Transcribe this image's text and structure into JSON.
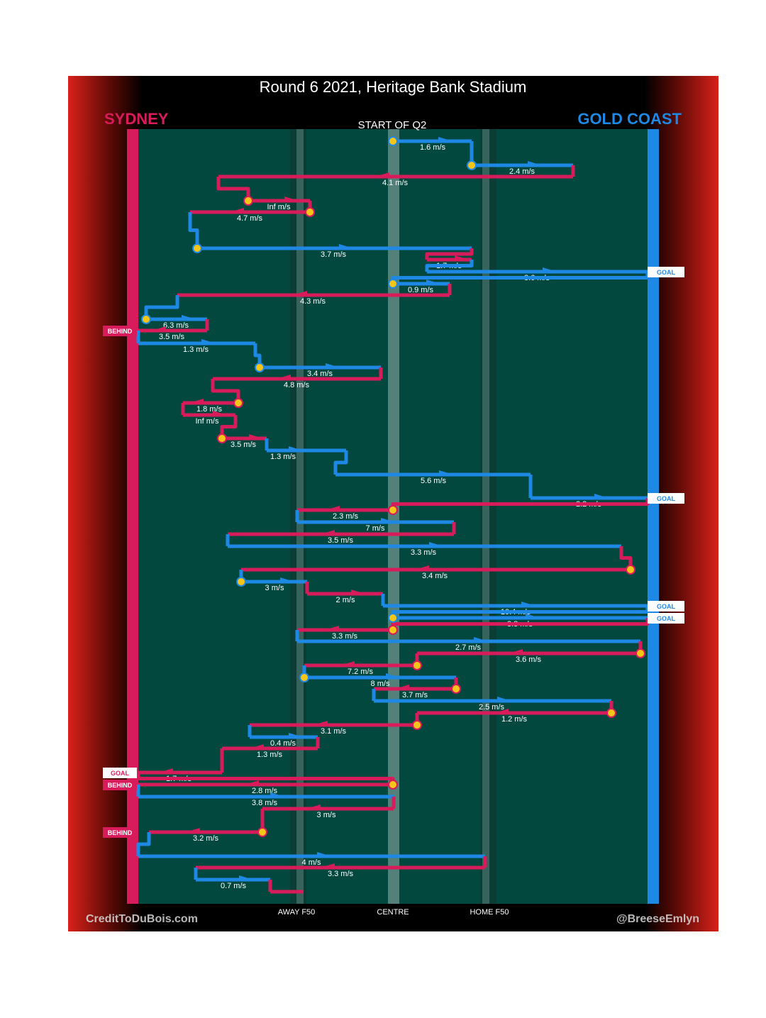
{
  "header": {
    "title": "Round 6 2021, Heritage Bank Stadium",
    "subtitle": "START OF Q2",
    "team_left": "SYDNEY",
    "team_right": "GOLD COAST"
  },
  "footer": {
    "credit_left": "CreditToDuBois.com",
    "credit_right": "@BreeseEmlyn"
  },
  "colors": {
    "sydney": "#d81b5b",
    "gold_coast": "#1e88e5",
    "field": "#02483e",
    "marker": "#f5c518"
  },
  "chart_data": {
    "type": "line",
    "x_ticks": [
      "AWAY F50",
      "CENTRE",
      "HOME F50"
    ],
    "legend": [
      "SYDNEY",
      "GOLD COAST"
    ],
    "grid": false,
    "chains": [
      {
        "team": "GOLD COAST",
        "speed": "1.6 m/s"
      },
      {
        "team": "GOLD COAST",
        "speed": "2.4 m/s"
      },
      {
        "team": "SYDNEY",
        "speed": "4.1 m/s"
      },
      {
        "team": "SYDNEY",
        "speed": "Inf m/s"
      },
      {
        "team": "SYDNEY",
        "speed": "4.7 m/s"
      },
      {
        "team": "GOLD COAST",
        "speed": "3.7 m/s"
      },
      {
        "team": "SYDNEY",
        "speed": "1.7 m/s"
      },
      {
        "team": "GOLD COAST",
        "speed": "8.6 m/s",
        "outcome": "GOAL"
      },
      {
        "team": "GOLD COAST",
        "speed": "0.9 m/s"
      },
      {
        "team": "SYDNEY",
        "speed": "4.3 m/s"
      },
      {
        "team": "GOLD COAST",
        "speed": "6.3 m/s"
      },
      {
        "team": "SYDNEY",
        "speed": "3.5 m/s",
        "outcome": "BEHIND"
      },
      {
        "team": "GOLD COAST",
        "speed": "1.3 m/s"
      },
      {
        "team": "GOLD COAST",
        "speed": "3.4 m/s"
      },
      {
        "team": "SYDNEY",
        "speed": "4.8 m/s"
      },
      {
        "team": "SYDNEY",
        "speed": "1.8 m/s"
      },
      {
        "team": "SYDNEY",
        "speed": "Inf m/s"
      },
      {
        "team": "SYDNEY",
        "speed": "3.5 m/s"
      },
      {
        "team": "GOLD COAST",
        "speed": "1.3 m/s"
      },
      {
        "team": "GOLD COAST",
        "speed": "5.6 m/s"
      },
      {
        "team": "GOLD COAST",
        "speed": "2.2 m/s",
        "outcome": "GOAL"
      },
      {
        "team": "SYDNEY",
        "speed": "2.3 m/s"
      },
      {
        "team": "GOLD COAST",
        "speed": "7 m/s"
      },
      {
        "team": "SYDNEY",
        "speed": "3.5 m/s"
      },
      {
        "team": "GOLD COAST",
        "speed": "3.3 m/s"
      },
      {
        "team": "SYDNEY",
        "speed": "3.4 m/s"
      },
      {
        "team": "GOLD COAST",
        "speed": "3 m/s"
      },
      {
        "team": "SYDNEY",
        "speed": "2 m/s"
      },
      {
        "team": "GOLD COAST",
        "speed": "10.4 m/s",
        "outcome": "GOAL"
      },
      {
        "team": "GOLD COAST",
        "speed": "3.8 m/s",
        "outcome": "GOAL"
      },
      {
        "team": "SYDNEY",
        "speed": "3.3 m/s"
      },
      {
        "team": "GOLD COAST",
        "speed": "2.7 m/s"
      },
      {
        "team": "SYDNEY",
        "speed": "3.6 m/s"
      },
      {
        "team": "SYDNEY",
        "speed": "7.2 m/s"
      },
      {
        "team": "GOLD COAST",
        "speed": "8 m/s"
      },
      {
        "team": "SYDNEY",
        "speed": "3.7 m/s"
      },
      {
        "team": "GOLD COAST",
        "speed": "2.5 m/s"
      },
      {
        "team": "SYDNEY",
        "speed": "1.2 m/s"
      },
      {
        "team": "SYDNEY",
        "speed": "3.1 m/s"
      },
      {
        "team": "GOLD COAST",
        "speed": "0.4 m/s"
      },
      {
        "team": "SYDNEY",
        "speed": "1.3 m/s"
      },
      {
        "team": "SYDNEY",
        "speed": "1.7 m/s",
        "outcome": "GOAL"
      },
      {
        "team": "SYDNEY",
        "speed": "2.8 m/s",
        "outcome": "BEHIND"
      },
      {
        "team": "GOLD COAST",
        "speed": "3.8 m/s"
      },
      {
        "team": "SYDNEY",
        "speed": "3 m/s"
      },
      {
        "team": "SYDNEY",
        "speed": "3.2 m/s",
        "outcome": "BEHIND"
      },
      {
        "team": "GOLD COAST",
        "speed": "4 m/s"
      },
      {
        "team": "SYDNEY",
        "speed": "3.3 m/s"
      },
      {
        "team": "GOLD COAST",
        "speed": "0.7 m/s"
      }
    ]
  }
}
